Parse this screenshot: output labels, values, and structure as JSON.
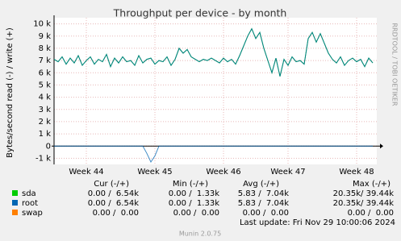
{
  "chart_data": {
    "type": "line",
    "title": "Throughput per device - by month",
    "y_label": "Bytes/second read (-) / write (+)",
    "watermark": "RRDTOOL / TOBI OETIKER",
    "last_update": "Last update: Fri Nov 29 10:00:06 2024",
    "footer": "Munin 2.0.75",
    "grid": true,
    "x": [
      0,
      1,
      2,
      3,
      4,
      5,
      6,
      7,
      8,
      9,
      10,
      11,
      12,
      13,
      14,
      15,
      16,
      17,
      18,
      19,
      20,
      21,
      22,
      23,
      24,
      25,
      26,
      27,
      28,
      29,
      30,
      31,
      32,
      33,
      34,
      35,
      36,
      37,
      38,
      39,
      40,
      41,
      42,
      43,
      44,
      45,
      46,
      47,
      48,
      49,
      50,
      51,
      52,
      53,
      54,
      55,
      56,
      57,
      58,
      59,
      60,
      61,
      62,
      63,
      64,
      65,
      66,
      67,
      68,
      69,
      70,
      71,
      72,
      73,
      74,
      75,
      76,
      77,
      78,
      79
    ],
    "xlim": [
      0,
      80
    ],
    "xticks": [
      {
        "value": 8,
        "label": "Week 44"
      },
      {
        "value": 25,
        "label": "Week 45"
      },
      {
        "value": 42,
        "label": "Week 46"
      },
      {
        "value": 58,
        "label": "Week 47"
      },
      {
        "value": 75,
        "label": "Week 48"
      }
    ],
    "ylim": [
      -1500,
      10500
    ],
    "yticks": [
      {
        "value": 10000,
        "label": "10 k"
      },
      {
        "value": 9000,
        "label": "9 k"
      },
      {
        "value": 8000,
        "label": "8 k"
      },
      {
        "value": 7000,
        "label": "7 k"
      },
      {
        "value": 6000,
        "label": "6 k"
      },
      {
        "value": 5000,
        "label": "5 k"
      },
      {
        "value": 4000,
        "label": "4 k"
      },
      {
        "value": 3000,
        "label": "3 k"
      },
      {
        "value": 2000,
        "label": "2 k"
      },
      {
        "value": 1000,
        "label": "1 k"
      },
      0,
      {
        "value": -1000,
        "label": "-1 k"
      }
    ],
    "stat_headers": [
      "Cur (-/+)",
      "Min (-/+)",
      "Avg (-/+)",
      "Max (-/+)"
    ],
    "series": [
      {
        "name": "sda",
        "color": "#00cc00",
        "values": [
          7100,
          6900,
          7300,
          6700,
          7200,
          6800,
          7400,
          6600,
          7000,
          7300,
          6700,
          7100,
          6900,
          7500,
          6500,
          7200,
          6800,
          7300,
          6900,
          7000,
          6600,
          7400,
          6800,
          7100,
          7200,
          6700,
          7000,
          6900,
          7300,
          6600,
          7100,
          8000,
          7600,
          7900,
          7300,
          7100,
          6900,
          7100,
          7000,
          7200,
          7000,
          6800,
          7200,
          6900,
          7100,
          6700,
          7400,
          8200,
          9000,
          9600,
          8800,
          9300,
          8000,
          7000,
          6000,
          7200,
          5700,
          7100,
          6600,
          7300,
          6900,
          7000,
          6700,
          8800,
          9300,
          8500,
          9200,
          8400,
          7600,
          7100,
          6800,
          7300,
          6600,
          7000,
          7200,
          6900,
          7100,
          6500,
          7200,
          6800
        ],
        "stats": [
          "0.00 /  6.54k",
          "0.00 /  1.33k",
          "5.83 /  7.04k",
          "20.35k/ 39.44k"
        ]
      },
      {
        "name": "root",
        "color": "#0066b3",
        "values": [
          7100,
          6900,
          7300,
          6700,
          7200,
          6800,
          7400,
          6600,
          7000,
          7300,
          6700,
          7100,
          6900,
          7500,
          6500,
          7200,
          6800,
          7300,
          6900,
          7000,
          6600,
          7400,
          6800,
          7100,
          7200,
          6700,
          7000,
          6900,
          7300,
          6600,
          7100,
          8000,
          7600,
          7900,
          7300,
          7100,
          6900,
          7100,
          7000,
          7200,
          7000,
          6800,
          7200,
          6900,
          7100,
          6700,
          7400,
          8200,
          9000,
          9600,
          8800,
          9300,
          8000,
          7000,
          6000,
          7200,
          5700,
          7100,
          6600,
          7300,
          6900,
          7000,
          6700,
          8800,
          9300,
          8500,
          9200,
          8400,
          7600,
          7100,
          6800,
          7300,
          6600,
          7000,
          7200,
          6900,
          7100,
          6500,
          7200,
          6800
        ],
        "read": [
          0,
          0,
          0,
          0,
          0,
          0,
          0,
          0,
          0,
          0,
          0,
          0,
          0,
          0,
          0,
          0,
          0,
          0,
          0,
          0,
          0,
          0,
          0,
          -600,
          -1300,
          -800,
          0,
          0,
          0,
          0,
          0,
          0,
          0,
          0,
          0,
          0,
          0,
          0,
          0,
          0,
          0,
          0,
          0,
          0,
          0,
          0,
          0,
          0,
          0,
          0,
          0,
          0,
          0,
          0,
          0,
          0,
          0,
          0,
          0,
          0,
          0,
          0,
          0,
          0,
          0,
          0,
          0,
          0,
          0,
          0,
          0,
          0,
          0,
          0,
          0,
          0,
          0,
          0,
          0,
          0
        ],
        "stats": [
          "0.00 /  6.54k",
          "0.00 /  1.33k",
          "5.83 /  7.04k",
          "20.35k/ 39.44k"
        ]
      },
      {
        "name": "swap",
        "color": "#ff8000",
        "stats": [
          "0.00 /  0.00",
          "0.00 /  0.00",
          "0.00 /  0.00",
          "0.00 /  0.00"
        ]
      }
    ]
  }
}
